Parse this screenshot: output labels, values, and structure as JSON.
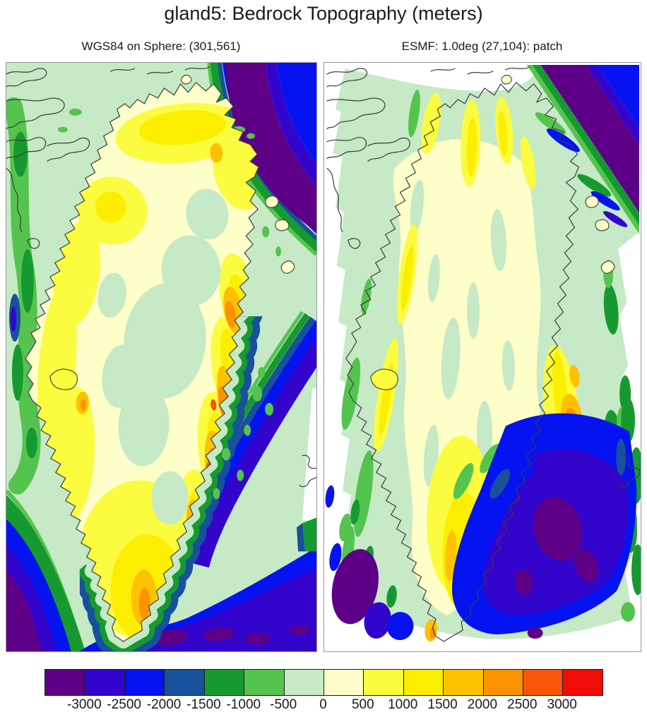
{
  "figure": {
    "title": "gland5: Bedrock Topography (meters)"
  },
  "panels": {
    "left": {
      "title": "WGS84 on Sphere: (301,561)"
    },
    "right": {
      "title": "ESMF: 1.0deg (27,104): patch"
    }
  },
  "colorbar": {
    "units": "meters",
    "tick_labels": [
      "-3000",
      "-2500",
      "-2000",
      "-1500",
      "-1000",
      "-500",
      "0",
      "500",
      "1000",
      "1500",
      "2000",
      "2500",
      "3000"
    ],
    "levels": [
      -3000,
      -2500,
      -2000,
      -1500,
      -1000,
      -500,
      0,
      500,
      1000,
      1500,
      2000,
      2500,
      3000
    ],
    "colors": [
      "#5d0087",
      "#3305cc",
      "#0413f0",
      "#17519c",
      "#169a30",
      "#55c44f",
      "#c6e9c6",
      "#fdfec8",
      "#fbfb40",
      "#fcee00",
      "#fdc100",
      "#fc9200",
      "#f85508",
      "#f00d08"
    ]
  },
  "map": {
    "sea_shelf_color": "#c6e9c6",
    "land_low_color": "#fdfec8",
    "coastline_color": "#3c3c3c"
  },
  "chart_data": {
    "type": "heatmap",
    "title": "gland5: Bedrock Topography (meters)",
    "units": "meters",
    "legend_position": "bottom",
    "levels": [
      -3000,
      -2500,
      -2000,
      -1500,
      -1000,
      -500,
      0,
      500,
      1000,
      1500,
      2000,
      2500,
      3000
    ],
    "palette": [
      "#5d0087",
      "#3305cc",
      "#0413f0",
      "#17519c",
      "#169a30",
      "#55c44f",
      "#c6e9c6",
      "#fdfec8",
      "#fbfb40",
      "#fcee00",
      "#fdc100",
      "#fc9200",
      "#f85508",
      "#f00d08"
    ],
    "panels": [
      {
        "name": "source-grid",
        "title": "WGS84 on Sphere: (301,561)",
        "grid_shape": [
          301,
          561
        ],
        "description": "High-resolution Greenland bedrock topography. Interior bedrock near or below sea level (pale green / cream), margins 500-1000 m (yellow), east-coast mountains 1500-3000 m (gold/orange with small red-orange peaks), continental shelf -500-0 m (pale green), deep ocean below -2000 m (blue/indigo/purple) in the northeast corner, southwest corner and southeast."
      },
      {
        "name": "regridded",
        "title": "ESMF: 1.0deg (27,104): patch",
        "grid_shape": [
          27,
          104
        ],
        "description": "Same bedrock field regridded to a 1.0 degree ESMF grid using the patch method; fan-shaped footprint of scalloped cells on white background, smoothed values with the same color levels and coastline overlay."
      }
    ]
  }
}
